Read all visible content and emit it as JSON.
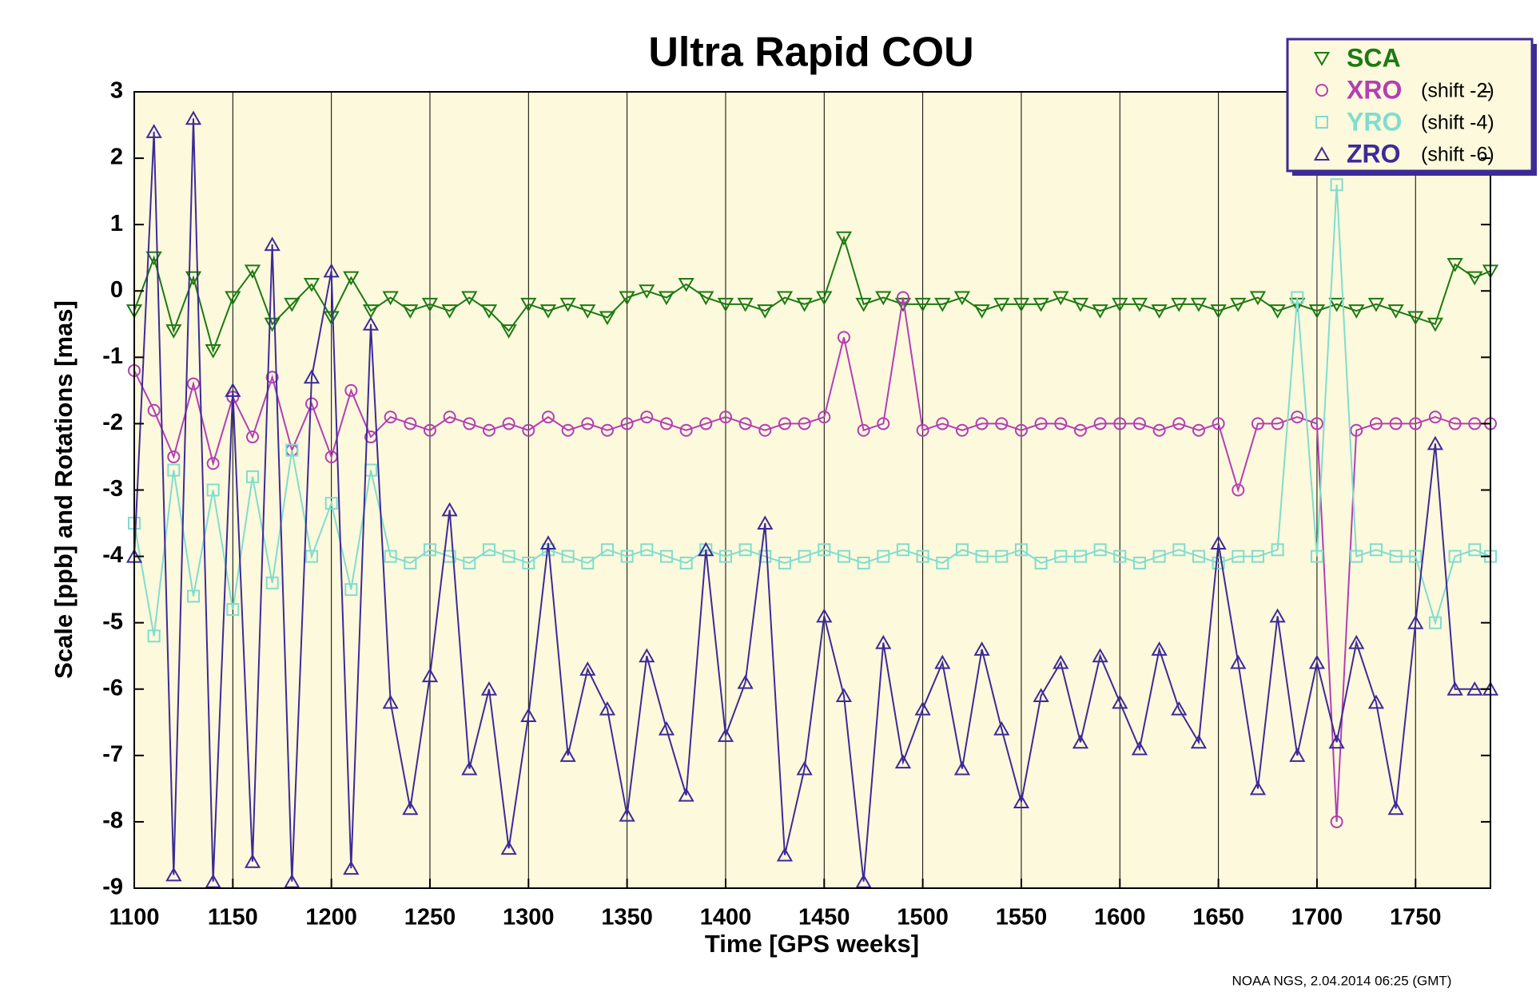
{
  "chart_data": {
    "type": "line",
    "title": "Ultra Rapid COU",
    "x_label": "Time [GPS weeks]",
    "y_label": "Scale [ppb] and Rotations [mas]",
    "footnote": "NOAA NGS, 2.04.2014 06:25 (GMT)",
    "x": [
      1100,
      1110,
      1120,
      1130,
      1140,
      1150,
      1160,
      1170,
      1180,
      1190,
      1200,
      1210,
      1220,
      1230,
      1240,
      1250,
      1260,
      1270,
      1280,
      1290,
      1300,
      1310,
      1320,
      1330,
      1340,
      1350,
      1360,
      1370,
      1380,
      1390,
      1400,
      1410,
      1420,
      1430,
      1440,
      1450,
      1460,
      1470,
      1480,
      1490,
      1500,
      1510,
      1520,
      1530,
      1540,
      1550,
      1560,
      1570,
      1580,
      1590,
      1600,
      1610,
      1620,
      1630,
      1640,
      1650,
      1660,
      1670,
      1680,
      1690,
      1700,
      1710,
      1720,
      1730,
      1740,
      1750,
      1760,
      1770,
      1780,
      1788
    ],
    "series": [
      {
        "name": "SCA",
        "color": "#1c7a12",
        "marker": "triangle-down",
        "values": [
          -0.3,
          0.5,
          -0.6,
          0.2,
          -0.9,
          -0.1,
          0.3,
          -0.5,
          -0.2,
          0.1,
          -0.4,
          0.2,
          -0.3,
          -0.1,
          -0.3,
          -0.2,
          -0.3,
          -0.1,
          -0.3,
          -0.6,
          -0.2,
          -0.3,
          -0.2,
          -0.3,
          -0.4,
          -0.1,
          0.0,
          -0.1,
          0.1,
          -0.1,
          -0.2,
          -0.2,
          -0.3,
          -0.1,
          -0.2,
          -0.1,
          0.8,
          -0.2,
          -0.1,
          -0.2,
          -0.2,
          -0.2,
          -0.1,
          -0.3,
          -0.2,
          -0.2,
          -0.2,
          -0.1,
          -0.2,
          -0.3,
          -0.2,
          -0.2,
          -0.3,
          -0.2,
          -0.2,
          -0.3,
          -0.2,
          -0.1,
          -0.3,
          -0.2,
          -0.3,
          -0.2,
          -0.3,
          -0.2,
          -0.3,
          -0.4,
          -0.5,
          0.4,
          0.2,
          0.3
        ]
      },
      {
        "name": "XRO",
        "note": "(shift -2)",
        "color": "#b23fb5",
        "marker": "circle",
        "values": [
          -1.2,
          -1.8,
          -2.5,
          -1.4,
          -2.6,
          -1.6,
          -2.2,
          -1.3,
          -2.4,
          -1.7,
          -2.5,
          -1.5,
          -2.2,
          -1.9,
          -2.0,
          -2.1,
          -1.9,
          -2.0,
          -2.1,
          -2.0,
          -2.1,
          -1.9,
          -2.1,
          -2.0,
          -2.1,
          -2.0,
          -1.9,
          -2.0,
          -2.1,
          -2.0,
          -1.9,
          -2.0,
          -2.1,
          -2.0,
          -2.0,
          -1.9,
          -0.7,
          -2.1,
          -2.0,
          -0.1,
          -2.1,
          -2.0,
          -2.1,
          -2.0,
          -2.0,
          -2.1,
          -2.0,
          -2.0,
          -2.1,
          -2.0,
          -2.0,
          -2.0,
          -2.1,
          -2.0,
          -2.1,
          -2.0,
          -3.0,
          -2.0,
          -2.0,
          -1.9,
          -2.0,
          -8.0,
          -2.1,
          -2.0,
          -2.0,
          -2.0,
          -1.9,
          -2.0,
          -2.0,
          -2.0
        ]
      },
      {
        "name": "YRO",
        "note": "(shift -4)",
        "color": "#7fddcf",
        "marker": "square",
        "values": [
          -3.5,
          -5.2,
          -2.7,
          -4.6,
          -3.0,
          -4.8,
          -2.8,
          -4.4,
          -2.4,
          -4.0,
          -3.2,
          -4.5,
          -2.7,
          -4.0,
          -4.1,
          -3.9,
          -4.0,
          -4.1,
          -3.9,
          -4.0,
          -4.1,
          -3.9,
          -4.0,
          -4.1,
          -3.9,
          -4.0,
          -3.9,
          -4.0,
          -4.1,
          -3.9,
          -4.0,
          -3.9,
          -4.0,
          -4.1,
          -4.0,
          -3.9,
          -4.0,
          -4.1,
          -4.0,
          -3.9,
          -4.0,
          -4.1,
          -3.9,
          -4.0,
          -4.0,
          -3.9,
          -4.1,
          -4.0,
          -4.0,
          -3.9,
          -4.0,
          -4.1,
          -4.0,
          -3.9,
          -4.0,
          -4.1,
          -4.0,
          -4.0,
          -3.9,
          -0.1,
          -4.0,
          1.6,
          -4.0,
          -3.9,
          -4.0,
          -4.0,
          -5.0,
          -4.0,
          -3.9,
          -4.0
        ]
      },
      {
        "name": "ZRO",
        "note": "(shift -6)",
        "color": "#3d2a97",
        "marker": "triangle-up",
        "values": [
          -4.0,
          2.4,
          -8.8,
          2.6,
          -8.9,
          -1.5,
          -8.6,
          0.7,
          -8.9,
          -1.3,
          0.3,
          -8.7,
          -0.5,
          -6.2,
          -7.8,
          -5.8,
          -3.3,
          -7.2,
          -6.0,
          -8.4,
          -6.4,
          -3.8,
          -7.0,
          -5.7,
          -6.3,
          -7.9,
          -5.5,
          -6.6,
          -7.6,
          -3.9,
          -6.7,
          -5.9,
          -3.5,
          -8.5,
          -7.2,
          -4.9,
          -6.1,
          -8.9,
          -5.3,
          -7.1,
          -6.3,
          -5.6,
          -7.2,
          -5.4,
          -6.6,
          -7.7,
          -6.1,
          -5.6,
          -6.8,
          -5.5,
          -6.2,
          -6.9,
          -5.4,
          -6.3,
          -6.8,
          -3.8,
          -5.6,
          -7.5,
          -4.9,
          -7.0,
          -5.6,
          -6.8,
          -5.3,
          -6.2,
          -7.8,
          -5.0,
          -2.3,
          -6.0,
          -6.0,
          -6.0
        ]
      }
    ],
    "xlim": [
      1100,
      1788
    ],
    "ylim": [
      -9,
      3
    ],
    "xticks": [
      1100,
      1150,
      1200,
      1250,
      1300,
      1350,
      1400,
      1450,
      1500,
      1550,
      1600,
      1650,
      1700,
      1750
    ],
    "yticks": [
      -9,
      -8,
      -7,
      -6,
      -5,
      -4,
      -3,
      -2,
      -1,
      0,
      1,
      2,
      3
    ],
    "grid": true,
    "legend": "top-right",
    "plot_background": "#fdf9dc"
  }
}
